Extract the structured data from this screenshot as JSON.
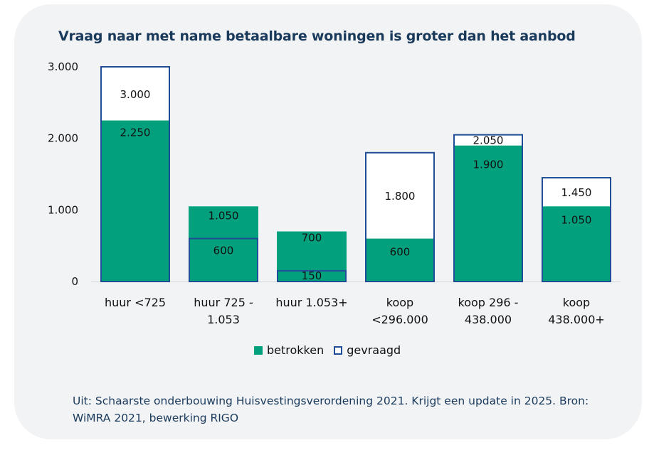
{
  "colors": {
    "betrokken": "#03a07e",
    "gevraagd": "#1f4e96",
    "card": "#f2f3f5",
    "title": "#1a3a5c"
  },
  "chart_data": {
    "type": "bar",
    "title": "Vraag naar met name betaalbare woningen is groter dan het aanbod",
    "categories": [
      [
        "huur <725"
      ],
      [
        "huur 725 -",
        "1.053"
      ],
      [
        "huur 1.053+"
      ],
      [
        "koop",
        "<296.000"
      ],
      [
        "koop 296 -",
        "438.000"
      ],
      [
        "koop",
        "438.000+"
      ]
    ],
    "series": [
      {
        "name": "betrokken",
        "values": [
          2250,
          1050,
          700,
          600,
          1900,
          1050
        ],
        "labels": [
          "2.250",
          "1.050",
          "700",
          "600",
          "1.900",
          "1.050"
        ]
      },
      {
        "name": "gevraagd",
        "values": [
          3000,
          600,
          150,
          1800,
          2050,
          1450
        ],
        "labels": [
          "3.000",
          "600",
          "150",
          "1.800",
          "2.050",
          "1.450"
        ]
      }
    ],
    "ylim": [
      0,
      3000
    ],
    "yticks": [
      0,
      1000,
      2000,
      3000
    ],
    "ytick_labels": [
      "0",
      "1.000",
      "2.000",
      "3.000"
    ],
    "grid": false,
    "legend": "bottom"
  },
  "legend": {
    "betrokken": "betrokken",
    "gevraagd": "gevraagd"
  },
  "source": "Uit: Schaarste onderbouwing Huisvestingsverordening  2021. Krijgt een update in 2025. Bron: WiMRA 2021, bewerking RIGO"
}
